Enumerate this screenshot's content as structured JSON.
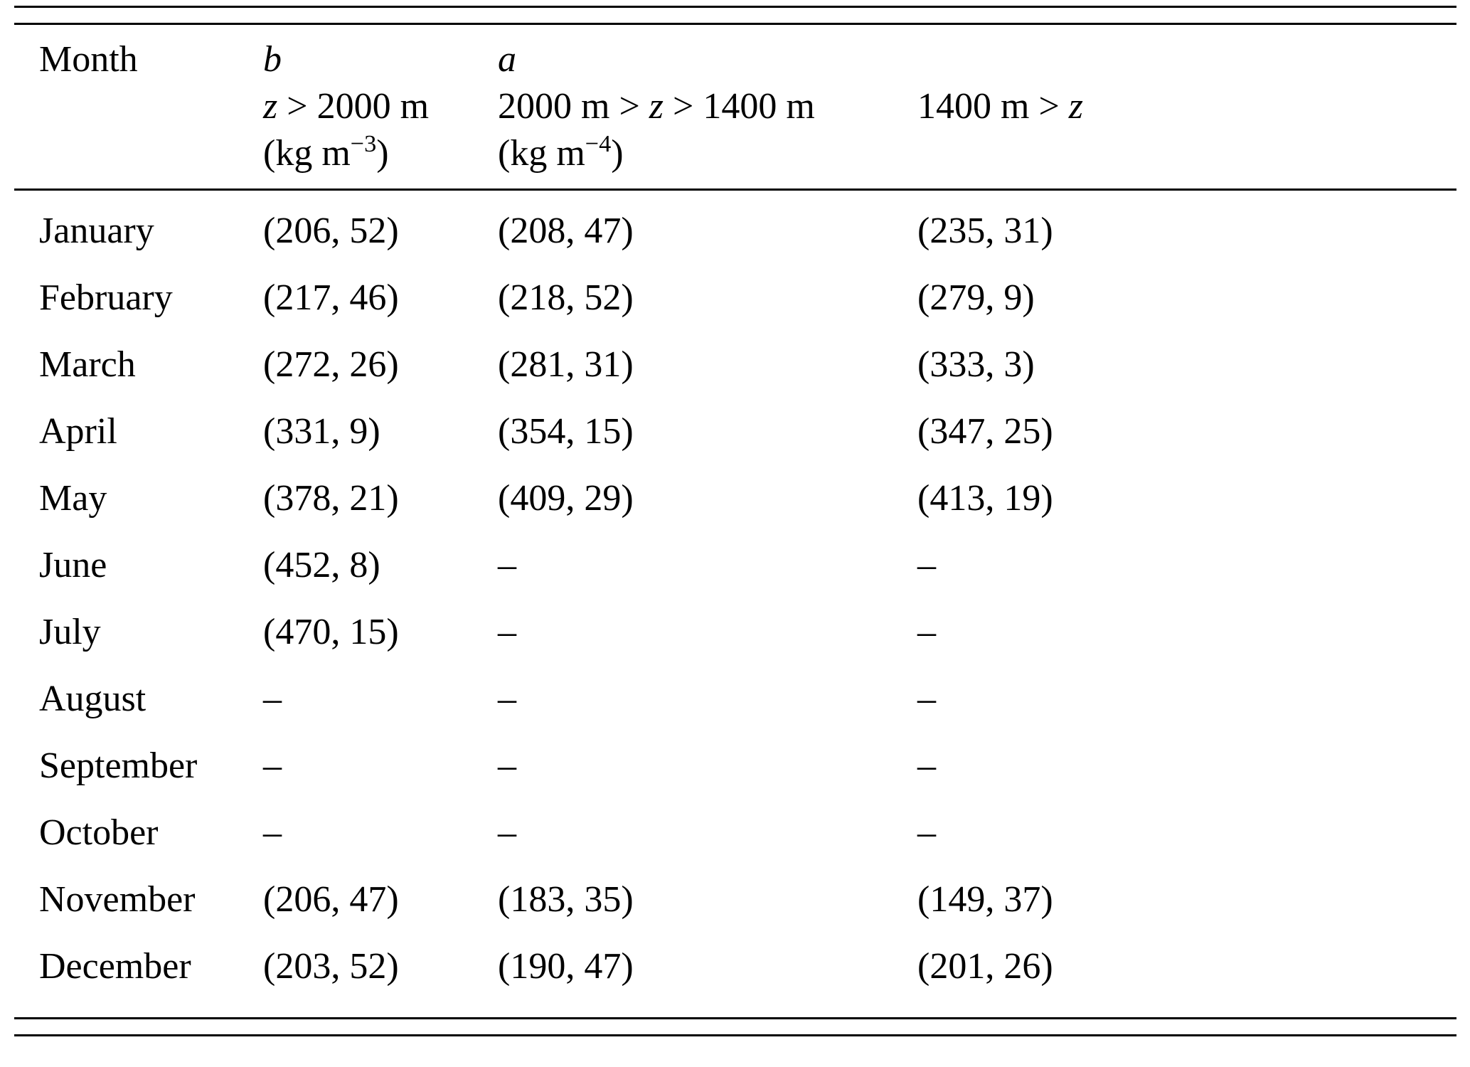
{
  "table": {
    "header": {
      "month": "Month",
      "col_b": {
        "symbol": "b",
        "range": {
          "pre": "",
          "var": "z",
          "post": " > 2000 m"
        },
        "unit": {
          "pre": "(kg m",
          "sup": "−3",
          "post": ")"
        }
      },
      "col_a": {
        "symbol": "a",
        "range": {
          "pre": "2000 m > ",
          "var": "z",
          "post": " > 1400 m"
        },
        "unit": {
          "pre": "(kg m",
          "sup": "−4",
          "post": ")"
        }
      },
      "col_z": {
        "range": {
          "pre": "1400 m > ",
          "var": "z",
          "post": ""
        }
      }
    },
    "rows": [
      {
        "month": "January",
        "b": "(206, 52)",
        "a": "(208, 47)",
        "z": "(235, 31)"
      },
      {
        "month": "February",
        "b": "(217, 46)",
        "a": "(218, 52)",
        "z": "(279, 9)"
      },
      {
        "month": "March",
        "b": "(272, 26)",
        "a": "(281, 31)",
        "z": "(333, 3)"
      },
      {
        "month": "April",
        "b": "(331, 9)",
        "a": "(354, 15)",
        "z": "(347, 25)"
      },
      {
        "month": "May",
        "b": "(378, 21)",
        "a": "(409, 29)",
        "z": "(413, 19)"
      },
      {
        "month": "June",
        "b": "(452, 8)",
        "a": "–",
        "z": "–"
      },
      {
        "month": "July",
        "b": "(470, 15)",
        "a": "–",
        "z": "–"
      },
      {
        "month": "August",
        "b": "–",
        "a": "–",
        "z": "–"
      },
      {
        "month": "September",
        "b": "–",
        "a": "–",
        "z": "–"
      },
      {
        "month": "October",
        "b": "–",
        "a": "–",
        "z": "–"
      },
      {
        "month": "November",
        "b": "(206, 47)",
        "a": "(183, 35)",
        "z": "(149, 37)"
      },
      {
        "month": "December",
        "b": "(203, 52)",
        "a": "(190, 47)",
        "z": "(201, 26)"
      }
    ]
  }
}
